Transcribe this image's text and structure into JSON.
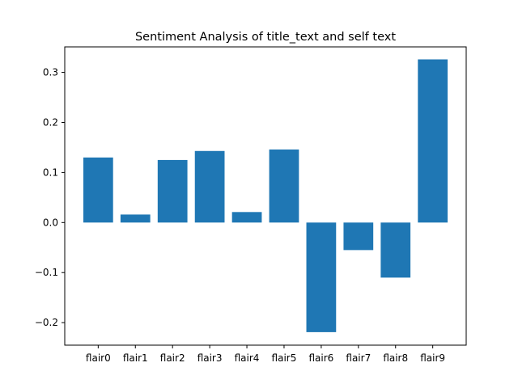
{
  "chart_data": {
    "type": "bar",
    "title": "Sentiment Analysis of title_text and self text",
    "xlabel": "",
    "ylabel": "",
    "categories": [
      "flair0",
      "flair1",
      "flair2",
      "flair3",
      "flair4",
      "flair5",
      "flair6",
      "flair7",
      "flair8",
      "flair9"
    ],
    "values": [
      0.13,
      0.016,
      0.125,
      0.143,
      0.021,
      0.146,
      -0.219,
      -0.055,
      -0.11,
      0.326
    ],
    "ylim": [
      -0.245,
      0.351
    ],
    "yticks": [
      -0.2,
      -0.1,
      0.0,
      0.1,
      0.2,
      0.3
    ],
    "ytick_labels": [
      "−0.2",
      "−0.1",
      "0.0",
      "0.1",
      "0.2",
      "0.3"
    ],
    "bar_color": "#1f77b4",
    "grid": false,
    "legend": "none"
  }
}
